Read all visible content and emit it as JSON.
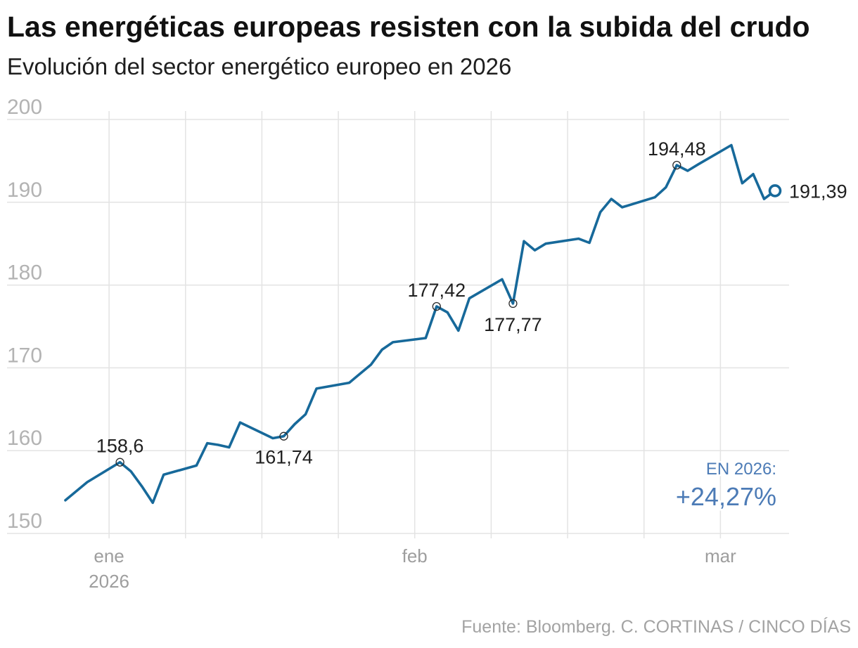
{
  "source": "Fuente: Bloomberg. C. CORTINAS / CINCO DÍAS",
  "summary": {
    "label": "EN 2026:",
    "value": "+24,27%"
  },
  "colors": {
    "line": "#17699a",
    "summary": "#4c7bb6",
    "grid": "#e3e3e3",
    "marker": "#2a2a2a"
  },
  "chart_data": {
    "type": "line",
    "title": "Las energéticas europeas resisten con la subida del crudo",
    "subtitle": "Evolución del sector energético europeo en 2026",
    "xlabel": "",
    "ylabel": "",
    "grid": true,
    "ylim": [
      150,
      200
    ],
    "yticks": [
      150,
      160,
      170,
      180,
      190,
      200
    ],
    "xlim": [
      "2025-12-31",
      "2026-03-06"
    ],
    "x_grid": [
      "2026-01-04",
      "2026-01-11",
      "2026-01-18",
      "2026-01-25",
      "2026-02-01",
      "2026-02-08",
      "2026-02-15",
      "2026-02-22",
      "2026-03-01"
    ],
    "xticks": [
      {
        "date": "2026-01-04",
        "label": "ene",
        "sublabel": "2026"
      },
      {
        "date": "2026-02-01",
        "label": "feb"
      },
      {
        "date": "2026-03-01",
        "label": "mar"
      }
    ],
    "series": [
      {
        "x": [
          "2025-12-31",
          "2026-01-02",
          "2026-01-05",
          "2026-01-06",
          "2026-01-07",
          "2026-01-08",
          "2026-01-09",
          "2026-01-12",
          "2026-01-13",
          "2026-01-14",
          "2026-01-15",
          "2026-01-16",
          "2026-01-19",
          "2026-01-20",
          "2026-01-21",
          "2026-01-22",
          "2026-01-23",
          "2026-01-26",
          "2026-01-27",
          "2026-01-28",
          "2026-01-29",
          "2026-01-30",
          "2026-02-02",
          "2026-02-03",
          "2026-02-04",
          "2026-02-05",
          "2026-02-06",
          "2026-02-09",
          "2026-02-10",
          "2026-02-11",
          "2026-02-12",
          "2026-02-13",
          "2026-02-16",
          "2026-02-17",
          "2026-02-18",
          "2026-02-19",
          "2026-02-20",
          "2026-02-23",
          "2026-02-24",
          "2026-02-25",
          "2026-02-26",
          "2026-02-27",
          "2026-03-02",
          "2026-03-03",
          "2026-03-04",
          "2026-03-05",
          "2026-03-06"
        ],
        "values": [
          154.01,
          156.2,
          158.6,
          157.5,
          155.7,
          153.7,
          157.1,
          158.2,
          160.9,
          160.7,
          160.4,
          163.4,
          161.5,
          161.74,
          163.2,
          164.4,
          167.5,
          168.2,
          169.3,
          170.4,
          172.2,
          173.1,
          173.6,
          177.42,
          176.7,
          174.5,
          178.4,
          180.7,
          177.77,
          185.3,
          184.2,
          185.0,
          185.6,
          185.1,
          188.8,
          190.4,
          189.4,
          190.6,
          191.8,
          194.48,
          193.8,
          194.6,
          196.9,
          192.3,
          193.4,
          190.4,
          191.39
        ]
      }
    ],
    "annotations": [
      {
        "date": "2026-01-05",
        "value": 158.6,
        "label": "158,6",
        "position": "above"
      },
      {
        "date": "2026-01-20",
        "value": 161.74,
        "label": "161,74",
        "position": "below"
      },
      {
        "date": "2026-02-03",
        "value": 177.42,
        "label": "177,42",
        "position": "above"
      },
      {
        "date": "2026-02-10",
        "value": 177.77,
        "label": "177,77",
        "position": "below"
      },
      {
        "date": "2026-02-25",
        "value": 194.48,
        "label": "194,48",
        "position": "above"
      },
      {
        "date": "2026-03-06",
        "value": 191.39,
        "label": "191,39",
        "position": "right",
        "endpoint": true
      }
    ]
  }
}
